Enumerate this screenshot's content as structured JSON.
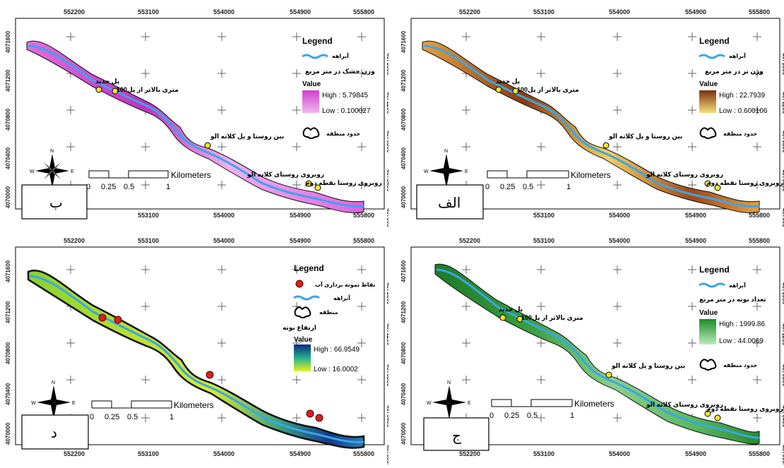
{
  "x_ticks": [
    "552200",
    "553100",
    "554000",
    "554900",
    "555800"
  ],
  "y_ticks": [
    "4071600",
    "4071200",
    "4070800",
    "4070400",
    "4070000"
  ],
  "north": {
    "n": "N",
    "s": "S",
    "e": "E",
    "w": "W"
  },
  "scale": {
    "unit": "Kilometers",
    "labels": [
      "0",
      "0.25",
      "0.5",
      "1"
    ]
  },
  "legend_title": "Legend",
  "site_names": {
    "new_bridge": "پل جدید",
    "upstream": "100متری بالاتر از پل",
    "between": "بین روستا و پل کلاته الو",
    "opp_village": "روبروی روستای کلاته الو",
    "opp_point2": "روبروی روستا نقطه دوم"
  },
  "panels": {
    "b": {
      "label": "ب",
      "stream": "آبراهه",
      "variable": "وزن خشک در متر مربع",
      "value_title": "Value",
      "high": "High : 5.79845",
      "low": "Low : 0.100027",
      "boundary": "حدود منطقه",
      "ramp": [
        "#f0b8f0",
        "#d040d0"
      ]
    },
    "alef": {
      "label": "الف",
      "stream": "آبراهه",
      "variable": "وزن تر در متر مربع",
      "value_title": "Value",
      "high": "High : 22.7939",
      "low": "Low : 0.600106",
      "boundary": "حدود منطقه",
      "ramp": [
        "#f6e07a",
        "#7a3010"
      ]
    },
    "dal": {
      "label": "د",
      "sampling": "نقاط نمونه برداری آب",
      "stream": "آبراهه",
      "boundary": "منطقه",
      "variable": "ارتفاع بوته",
      "value_title": "Value",
      "high": "High : 66.9549",
      "low": "Low : 16.0002",
      "ramp": [
        "#e8f020",
        "#0a2a80"
      ]
    },
    "jim": {
      "label": "ج",
      "stream": "آبراهه",
      "variable": "تعداد بوته در متر مربع",
      "value_title": "Value",
      "high": "High : 1999.86",
      "low": "Low : 44.0069",
      "boundary": "حدود منطقه",
      "ramp": [
        "#b8ecb8",
        "#1e8a28"
      ]
    }
  },
  "colors": {
    "stream": "#3aa6e8",
    "outline": "#111111",
    "site_yellow": "#f5e62a",
    "site_red": "#d42020"
  }
}
